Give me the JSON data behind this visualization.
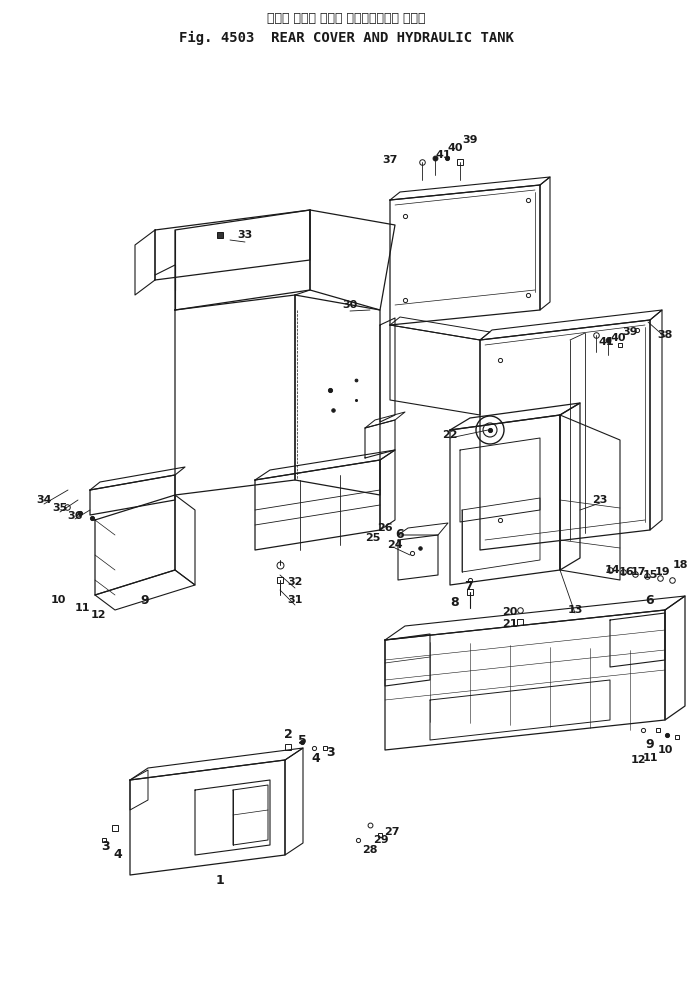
{
  "title_japanese": "リヤー カバー および ハイドロリック タンク",
  "title_english": "Fig. 4503  REAR COVER AND HYDRAULIC TANK",
  "bg_color": "#ffffff",
  "line_color": "#1a1a1a",
  "text_color": "#1a1a1a",
  "fig_width": 6.93,
  "fig_height": 9.89
}
